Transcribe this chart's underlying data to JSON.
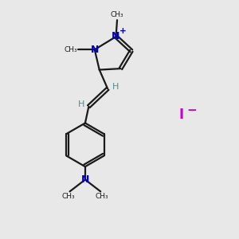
{
  "bg_color": "#e8e8e8",
  "bond_color": "#1a1a1a",
  "n_color": "#0000cc",
  "h_color": "#4a9090",
  "i_color": "#cc00cc",
  "plus_label": "+",
  "n_label": "N",
  "h_label": "H",
  "me_label": "CH₃",
  "i_label": "I",
  "minus_label": "−"
}
